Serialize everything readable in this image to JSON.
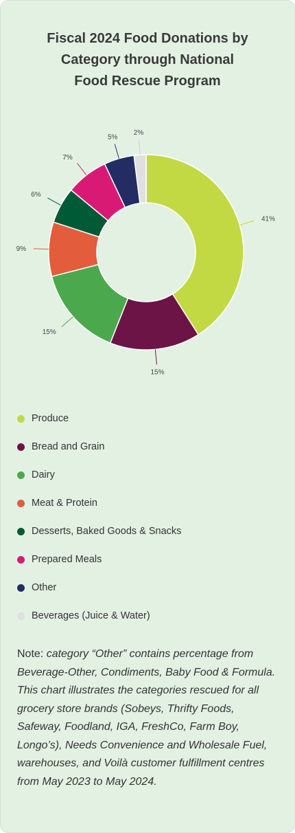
{
  "title_lines": [
    "Fiscal 2024 Food Donations by",
    "Category through National",
    "Food Rescue Program"
  ],
  "chart_data": {
    "type": "pie",
    "donut": true,
    "title": "Fiscal 2024 Food Donations by Category through National Food Rescue Program",
    "legend_position": "bottom",
    "categories": [
      "Produce",
      "Bread and Grain",
      "Dairy",
      "Meat & Protein",
      "Desserts, Baked Goods & Snacks",
      "Prepared Meals",
      "Other",
      "Beverages (Juice & Water)"
    ],
    "values": [
      41,
      15,
      15,
      9,
      6,
      7,
      5,
      2
    ],
    "labels": [
      "41%",
      "15%",
      "15%",
      "9%",
      "6%",
      "7%",
      "5%",
      "2%"
    ],
    "colors": [
      "#c2d944",
      "#6d1446",
      "#4ca84c",
      "#e35c3b",
      "#005a36",
      "#d91a75",
      "#232c63",
      "#e0e0e0"
    ]
  },
  "note": {
    "prefix": "Note: ",
    "text": "category “Other” contains percentage from Beverage-Other, Condiments, Baby Food & Formula. This chart illustrates the categories rescued for all grocery store brands (Sobeys, Thrifty Foods, Safeway, Foodland, IGA, FreshCo, Farm Boy, Longo’s), Needs Convenience and Wholesale Fuel, warehouses, and Voilà customer fulfillment centres from May 2023 to May 2024."
  }
}
